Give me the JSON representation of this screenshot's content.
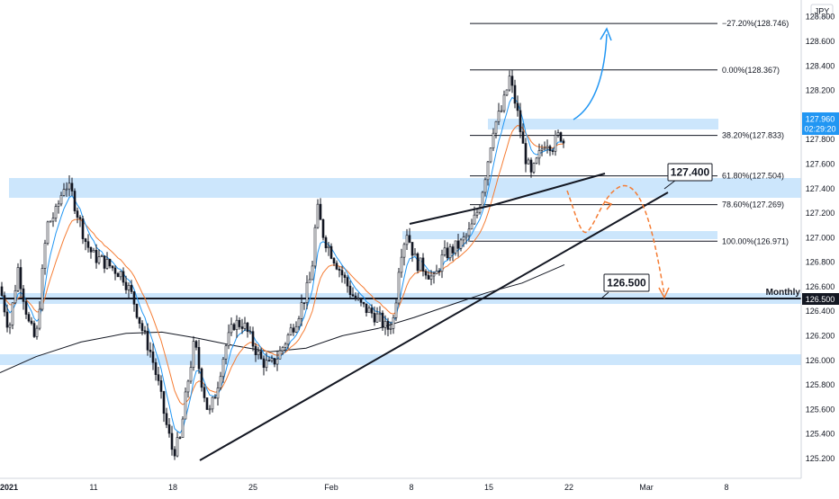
{
  "currency": "JPY",
  "price_axis": {
    "ticks": [
      "128.800",
      "128.600",
      "128.400",
      "128.200",
      "127.800",
      "127.600",
      "127.400",
      "127.200",
      "127.000",
      "126.800",
      "126.600",
      "126.400",
      "126.200",
      "126.000",
      "125.800",
      "125.600",
      "125.400",
      "125.200"
    ],
    "last_price": "127.960",
    "countdown": "02:29:20",
    "monthly_level": "126.500"
  },
  "time_axis": {
    "labels": [
      "2021",
      "11",
      "18",
      "25",
      "Feb",
      "8",
      "15",
      "22",
      "Mar",
      "8"
    ]
  },
  "fib_levels": [
    {
      "label": "−27.20%(128.746)",
      "value": 128.746
    },
    {
      "label": "0.00%(128.367)",
      "value": 128.367
    },
    {
      "label": "38.20%(127.833)",
      "value": 127.833
    },
    {
      "label": "61.80%(127.504)",
      "value": 127.504
    },
    {
      "label": "78.60%(127.269)",
      "value": 127.269
    },
    {
      "label": "100.00%(126.971)",
      "value": 126.971
    }
  ],
  "callouts": {
    "upper": "127.400",
    "lower": "126.500",
    "monthly": "Monthly"
  },
  "colors": {
    "up_candle": "#ffffff",
    "down_candle": "#131722",
    "zone": "#bbdefb",
    "ema_fast": "#2196f3",
    "ema_slow": "#f57c33",
    "sma_long": "#131722",
    "projection_up": "#2196f3",
    "projection_down": "#f57c33",
    "price_tag": "#2196f3"
  },
  "chart_data": {
    "type": "candlestick",
    "symbol_currency": "JPY",
    "ylim": [
      125.12,
      128.88
    ],
    "horizontal_levels": [
      127.4,
      126.5,
      126.0,
      127.0,
      127.88
    ],
    "fib_retracement": [
      {
        "ratio": "-27.20%",
        "price": 128.746
      },
      {
        "ratio": "0.00%",
        "price": 128.367
      },
      {
        "ratio": "38.20%",
        "price": 127.833
      },
      {
        "ratio": "61.80%",
        "price": 127.504
      },
      {
        "ratio": "78.60%",
        "price": 127.269
      },
      {
        "ratio": "100.00%",
        "price": 126.971
      }
    ],
    "key_levels": [
      127.4,
      126.5
    ],
    "monthly_level": 126.5,
    "last_price": 127.96
  }
}
